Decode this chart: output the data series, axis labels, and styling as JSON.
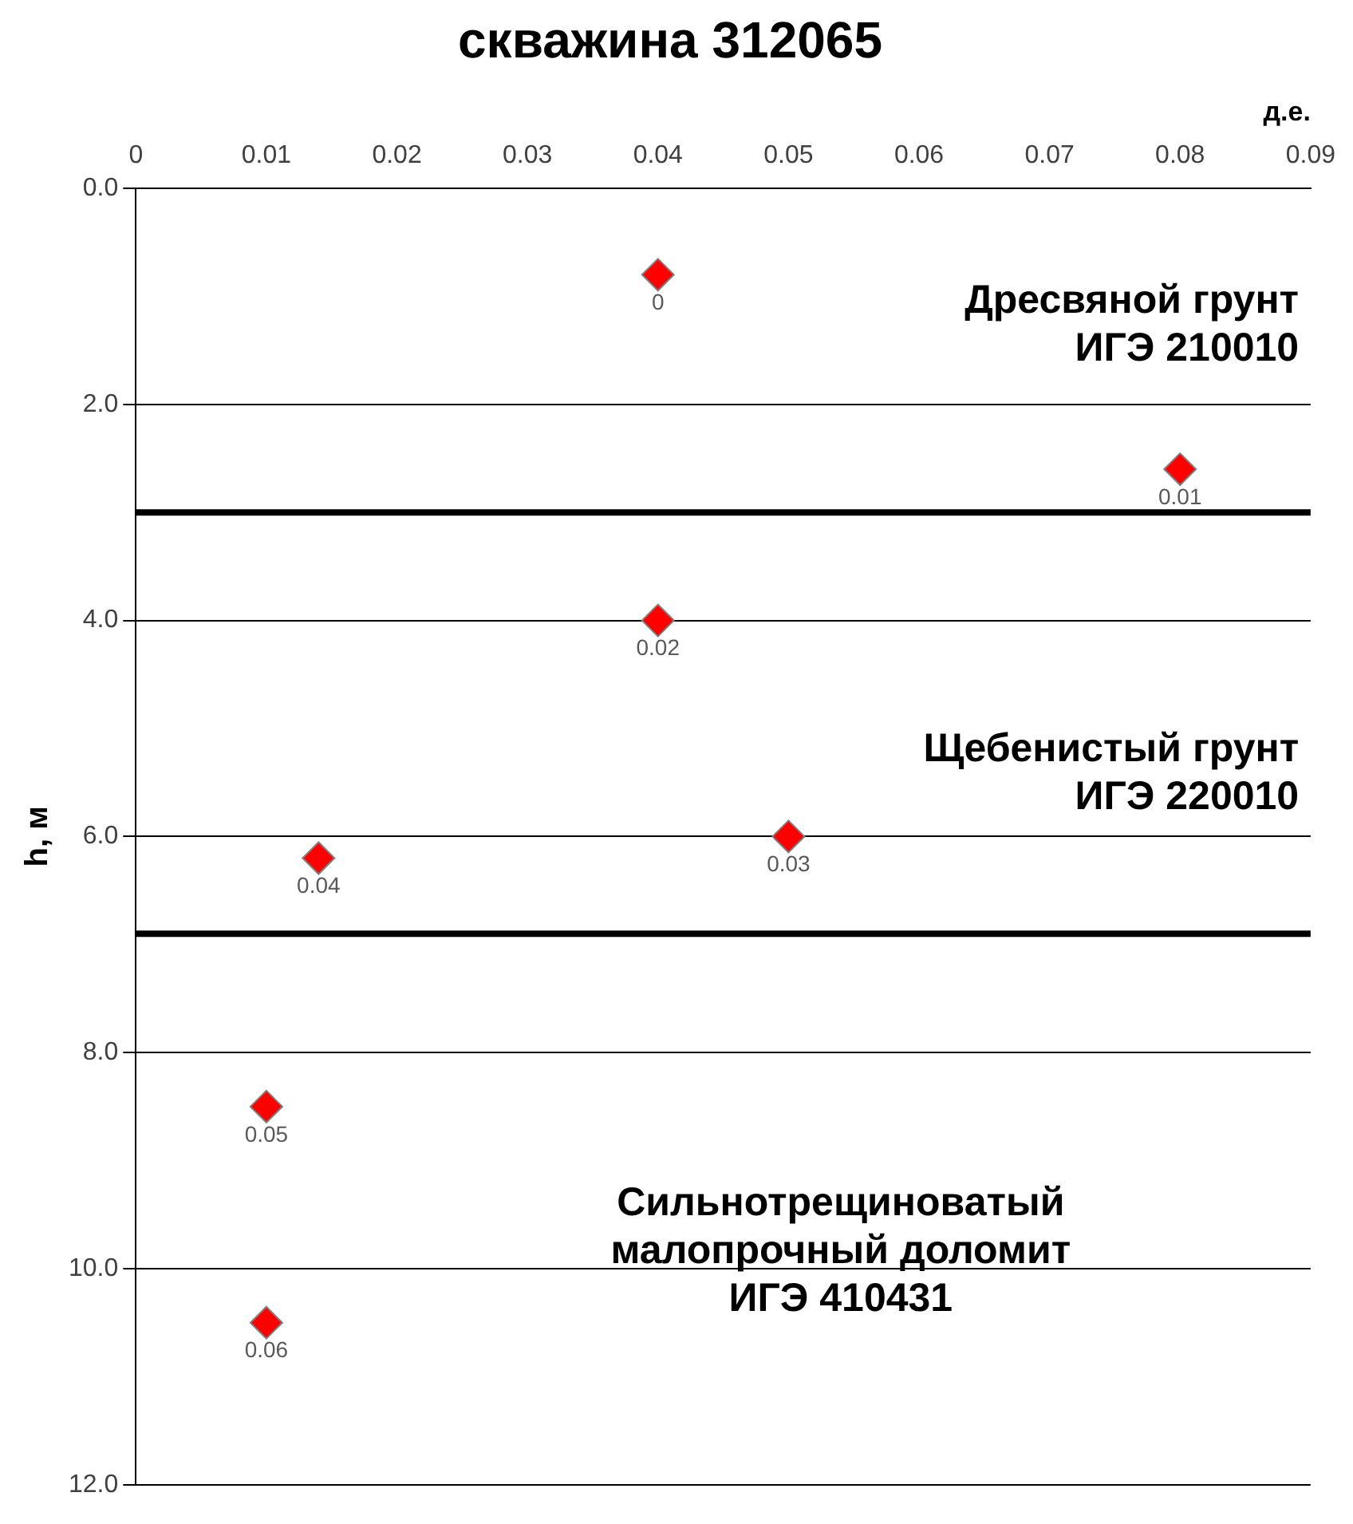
{
  "chart_data": {
    "type": "scatter",
    "title": "скважина 312065",
    "xlabel": "д.е.",
    "ylabel": "h, м",
    "x": [
      0.04,
      0.08,
      0.04,
      0.05,
      0.014,
      0.01,
      0.01
    ],
    "values": [
      0.8,
      2.6,
      4.0,
      6.0,
      6.2,
      8.5,
      10.5
    ],
    "color": "#ff0000",
    "marker": "diamond",
    "xlim": [
      0,
      0.09
    ],
    "xticks": [
      0,
      0.01,
      0.02,
      0.03,
      0.04,
      0.05,
      0.06,
      0.07,
      0.08,
      0.09
    ],
    "ylim": [
      12,
      0
    ],
    "yticks": [
      {
        "value": 0,
        "label": "0.0"
      },
      {
        "value": 2,
        "label": "2.0"
      },
      {
        "value": 4,
        "label": "4.0"
      },
      {
        "value": 6,
        "label": "6.0"
      },
      {
        "value": 8,
        "label": "8.0"
      },
      {
        "value": 10,
        "label": "10.0"
      },
      {
        "value": 12,
        "label": "12.0"
      }
    ],
    "grid": "y",
    "legend": false,
    "ref_lines": [
      {
        "axis": "y",
        "value": 3,
        "color": "#000000"
      },
      {
        "axis": "y",
        "value": 6.9,
        "color": "#000000"
      }
    ],
    "annotations": [
      {
        "text": "0",
        "x": 0.04,
        "y": 0.8
      },
      {
        "text": "0.01",
        "x": 0.08,
        "y": 2.6
      },
      {
        "text": "0.02",
        "x": 0.04,
        "y": 4.0
      },
      {
        "text": "0.03",
        "x": 0.05,
        "y": 6.0
      },
      {
        "text": "0.04",
        "x": 0.014,
        "y": 6.2
      },
      {
        "text": "0.05",
        "x": 0.01,
        "y": 8.5
      },
      {
        "text": "0.06",
        "x": 0.01,
        "y": 10.5
      },
      "Дресвяной грунт\nИГЭ 210010",
      "Щебенистый грунт\nИГЭ 220010",
      "Сильнотрещиноватый\nмалопрочный доломит\nИГЭ 410431"
    ]
  }
}
